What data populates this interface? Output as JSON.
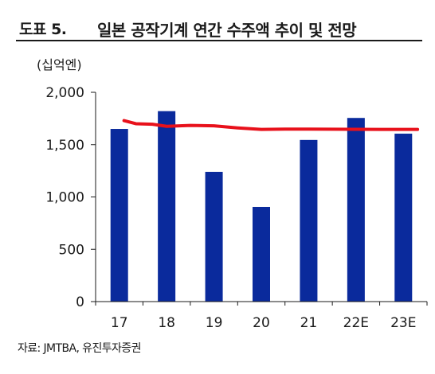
{
  "header": {
    "figure_label": "도표 5.",
    "title": "일본 공작기계 연간 수주액 추이 및 전망"
  },
  "chart_data": {
    "type": "bar",
    "unit_label": "(십억엔)",
    "categories": [
      "17",
      "18",
      "19",
      "20",
      "21",
      "22E",
      "23E"
    ],
    "series": [
      {
        "values": [
          1650,
          1820,
          1240,
          905,
          1545,
          1755,
          1605
        ],
        "color": "#0a2a9c"
      }
    ],
    "overlay_line": {
      "points": [
        [
          0.1,
          1730
        ],
        [
          0.35,
          1700
        ],
        [
          0.7,
          1695
        ],
        [
          1.0,
          1675
        ],
        [
          1.5,
          1683
        ],
        [
          2.0,
          1680
        ],
        [
          2.5,
          1660
        ],
        [
          3.0,
          1645
        ],
        [
          3.5,
          1648
        ],
        [
          4.0,
          1648
        ],
        [
          4.5,
          1647
        ],
        [
          5.0,
          1646
        ],
        [
          5.5,
          1645
        ],
        [
          6.0,
          1645
        ],
        [
          6.3,
          1645
        ]
      ],
      "color": "#e8111b"
    },
    "ylim": [
      0,
      2000
    ],
    "yticks": [
      0,
      500,
      1000,
      1500,
      2000
    ],
    "ytick_labels": [
      "0",
      "500",
      "1,000",
      "1,500",
      "2,000"
    ],
    "grid": false,
    "legend": "none"
  },
  "footer": {
    "source": "자료: JMTBA, 유진투자증권"
  }
}
